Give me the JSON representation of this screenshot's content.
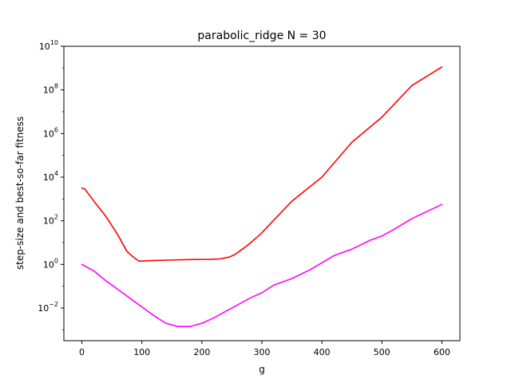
{
  "chart_data": {
    "type": "line",
    "title": "parabolic_ridge N = 30",
    "xlabel": "g",
    "ylabel": "step-size and best-so-far fitness",
    "xlim": [
      -30,
      630
    ],
    "ylim_log10": [
      -3.5,
      10
    ],
    "yscale": "log",
    "grid": false,
    "x_ticks": [
      {
        "value": 0,
        "label": "0"
      },
      {
        "value": 100,
        "label": "100"
      },
      {
        "value": 200,
        "label": "200"
      },
      {
        "value": 300,
        "label": "300"
      },
      {
        "value": 400,
        "label": "400"
      },
      {
        "value": 500,
        "label": "500"
      },
      {
        "value": 600,
        "label": "600"
      }
    ],
    "y_ticks": [
      {
        "exp": -2,
        "base": "10",
        "sup": "−2"
      },
      {
        "exp": 0,
        "base": "10",
        "sup": "0"
      },
      {
        "exp": 2,
        "base": "10",
        "sup": "2"
      },
      {
        "exp": 4,
        "base": "10",
        "sup": "4"
      },
      {
        "exp": 6,
        "base": "10",
        "sup": "6"
      },
      {
        "exp": 8,
        "base": "10",
        "sup": "8"
      },
      {
        "exp": 10,
        "base": "10",
        "sup": "10"
      }
    ],
    "series": [
      {
        "color": "#ff0000",
        "x": [
          0,
          5,
          20,
          40,
          60,
          75,
          85,
          95,
          100,
          120,
          150,
          180,
          210,
          230,
          245,
          255,
          265,
          275,
          290,
          300,
          350,
          400,
          450,
          500,
          550,
          600
        ],
        "log10_y": [
          3.5,
          3.45,
          2.9,
          2.2,
          1.35,
          0.6,
          0.35,
          0.15,
          0.15,
          0.18,
          0.2,
          0.22,
          0.23,
          0.25,
          0.33,
          0.45,
          0.65,
          0.85,
          1.2,
          1.45,
          2.9,
          4.0,
          5.6,
          6.75,
          8.2,
          9.05
        ]
      },
      {
        "color": "#ff00ff",
        "x": [
          0,
          20,
          40,
          60,
          80,
          100,
          120,
          140,
          160,
          180,
          200,
          220,
          240,
          260,
          280,
          300,
          320,
          350,
          380,
          420,
          450,
          480,
          500,
          520,
          550,
          600
        ],
        "log10_y": [
          0.0,
          -0.3,
          -0.75,
          -1.15,
          -1.55,
          -1.95,
          -2.35,
          -2.7,
          -2.85,
          -2.85,
          -2.7,
          -2.45,
          -2.15,
          -1.85,
          -1.55,
          -1.3,
          -0.95,
          -0.65,
          -0.25,
          0.4,
          0.7,
          1.1,
          1.3,
          1.6,
          2.1,
          2.75
        ]
      }
    ]
  }
}
